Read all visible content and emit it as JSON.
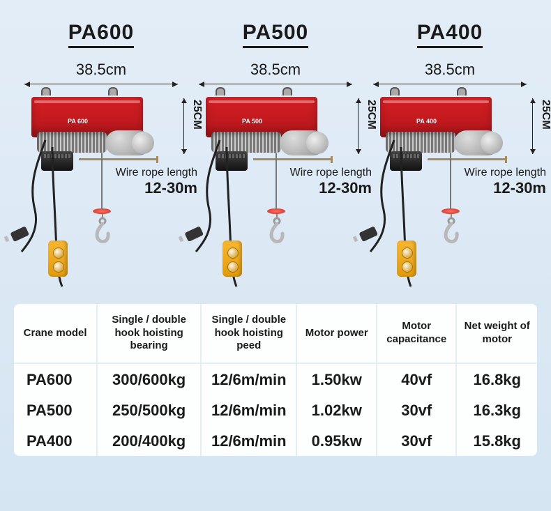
{
  "colors": {
    "bg_top": "#e3edf7",
    "bg_bottom": "#d5e5f2",
    "hoist_red": "#d31f24",
    "hoist_red_dark": "#b5161b",
    "pendant": "#f7b733",
    "text": "#1a1a1a",
    "table_bg": "#fdfefe",
    "table_border": "#e6eef5"
  },
  "products": [
    {
      "model": "PA600",
      "body_label": "PA 600",
      "width": "38.5cm",
      "height": "25CM",
      "rope_label": "Wire rope length",
      "rope_value": "12-30m"
    },
    {
      "model": "PA500",
      "body_label": "PA 500",
      "width": "38.5cm",
      "height": "25CM",
      "rope_label": "Wire rope length",
      "rope_value": "12-30m"
    },
    {
      "model": "PA400",
      "body_label": "PA 400",
      "width": "38.5cm",
      "height": "25CM",
      "rope_label": "Wire rope length",
      "rope_value": "12-30m"
    }
  ],
  "table": {
    "columns": [
      "Crane model",
      "Single / double hook hoisting bearing",
      "Single / double hook hoisting peed",
      "Motor power",
      "Motor capacitance",
      "Net weight of motor"
    ],
    "rows": [
      [
        "PA600",
        "300/600kg",
        "12/6m/min",
        "1.50kw",
        "40vf",
        "16.8kg"
      ],
      [
        "PA500",
        "250/500kg",
        "12/6m/min",
        "1.02kw",
        "30vf",
        "16.3kg"
      ],
      [
        "PA400",
        "200/400kg",
        "12/6m/min",
        "0.95kw",
        "30vf",
        "15.8kg"
      ]
    ],
    "header_fontsize": 15,
    "cell_fontsize": 22
  }
}
